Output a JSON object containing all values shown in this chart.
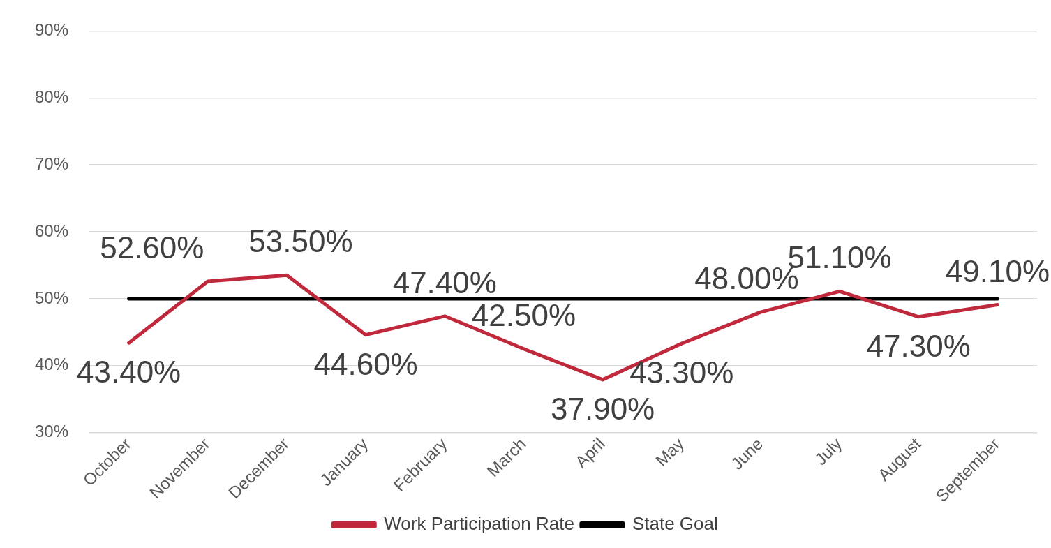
{
  "chart_data": {
    "type": "line",
    "categories": [
      "October",
      "November",
      "December",
      "January",
      "February",
      "March",
      "April",
      "May",
      "June",
      "July",
      "August",
      "September"
    ],
    "series": [
      {
        "name": "Work Participation Rate",
        "color": "#c0283c",
        "values": [
          43.4,
          52.6,
          53.5,
          44.6,
          47.4,
          42.5,
          37.9,
          43.3,
          48.0,
          51.1,
          47.3,
          49.1
        ],
        "value_labels": [
          "43.40%",
          "52.60%",
          "53.50%",
          "44.60%",
          "47.40%",
          "42.50%",
          "37.90%",
          "43.30%",
          "48.00%",
          "51.10%",
          "47.30%",
          "49.10%"
        ]
      },
      {
        "name": "State Goal",
        "color": "#000000",
        "values": [
          50,
          50,
          50,
          50,
          50,
          50,
          50,
          50,
          50,
          50,
          50,
          50
        ]
      }
    ],
    "ylim": [
      30,
      90
    ],
    "yticks": [
      {
        "value": 30,
        "label": "30%"
      },
      {
        "value": 40,
        "label": "40%"
      },
      {
        "value": 50,
        "label": "50%"
      },
      {
        "value": 60,
        "label": "60%"
      },
      {
        "value": 70,
        "label": "70%"
      },
      {
        "value": 80,
        "label": "80%"
      },
      {
        "value": 90,
        "label": "90%"
      }
    ],
    "grid": "y",
    "legend": "bottom",
    "marker": "none",
    "line_style": "solid"
  }
}
